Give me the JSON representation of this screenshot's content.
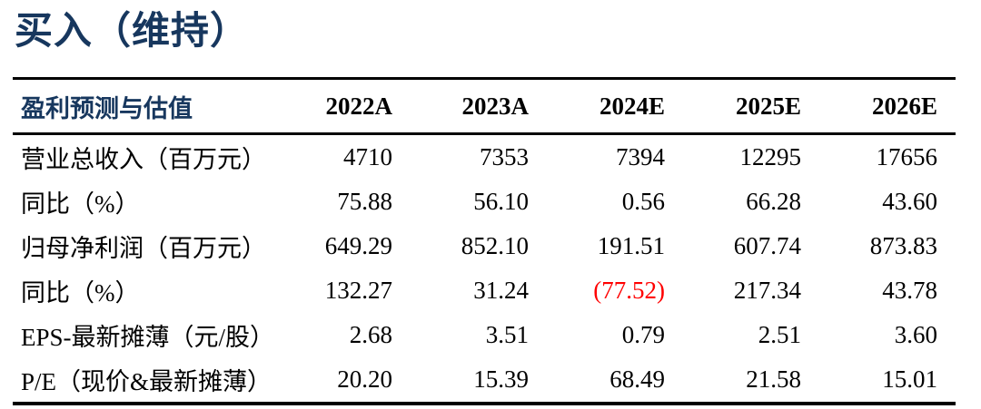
{
  "title": "买入（维持）",
  "colors": {
    "title_navy": "#17375E",
    "negative_red": "#FF0000",
    "border_black": "#000000"
  },
  "table": {
    "header": {
      "label": "盈利预测与估值",
      "years": [
        "2022A",
        "2023A",
        "2024E",
        "2025E",
        "2026E"
      ]
    },
    "rows": [
      {
        "label": "营业总收入（百万元）",
        "values": [
          "4710",
          "7353",
          "7394",
          "12295",
          "17656"
        ]
      },
      {
        "label": "同比（%）",
        "values": [
          "75.88",
          "56.10",
          "0.56",
          "66.28",
          "43.60"
        ]
      },
      {
        "label": "归母净利润（百万元）",
        "values": [
          "649.29",
          "852.10",
          "191.51",
          "607.74",
          "873.83"
        ]
      },
      {
        "label": "同比（%）",
        "values": [
          "132.27",
          "31.24",
          "(77.52)",
          "217.34",
          "43.78"
        ]
      },
      {
        "label": "EPS-最新摊薄（元/股）",
        "values": [
          "2.68",
          "3.51",
          "0.79",
          "2.51",
          "3.60"
        ]
      },
      {
        "label": "P/E（现价&最新摊薄）",
        "values": [
          "20.20",
          "15.39",
          "68.49",
          "21.58",
          "15.01"
        ]
      }
    ]
  }
}
